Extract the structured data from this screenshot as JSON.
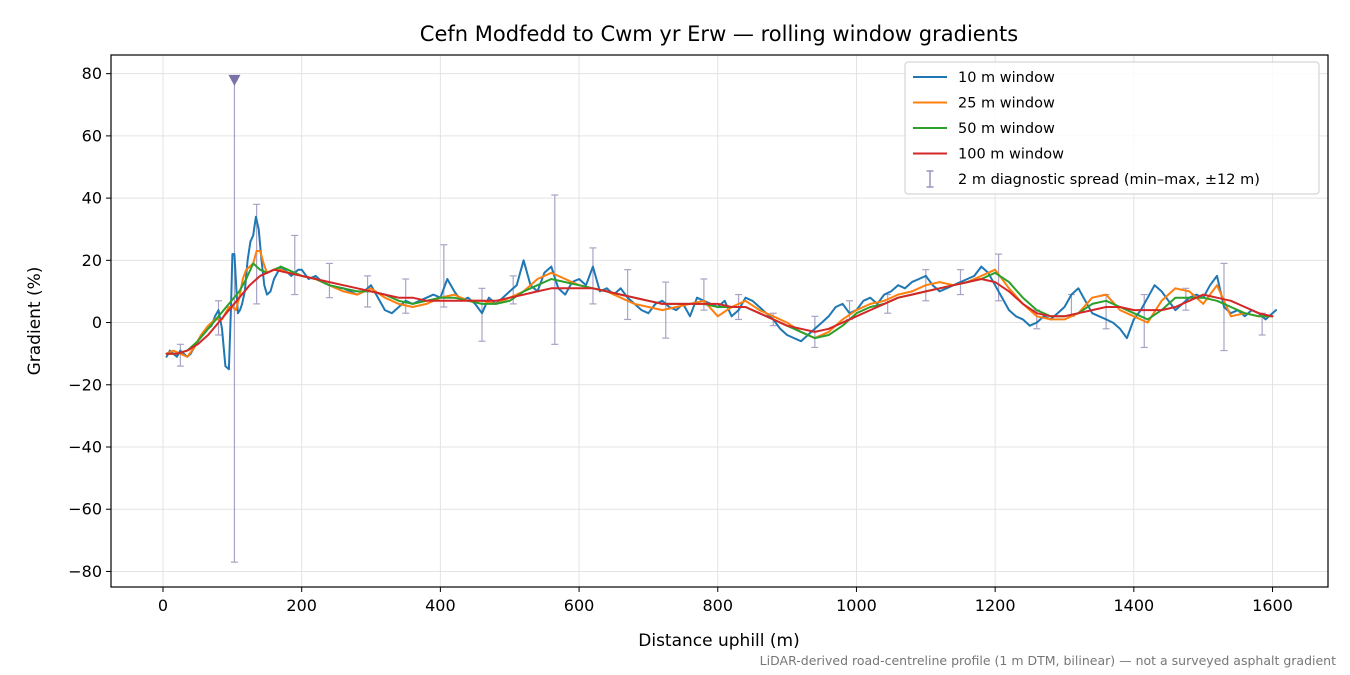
{
  "chart_data": {
    "type": "line",
    "title": "Cefn Modfedd to Cwm yr Erw — rolling window gradients",
    "xlabel": "Distance uphill (m)",
    "ylabel": "Gradient (%)",
    "xlim": [
      -75,
      1680
    ],
    "ylim": [
      -85,
      86
    ],
    "xticks": [
      0,
      200,
      400,
      600,
      800,
      1000,
      1200,
      1400,
      1600
    ],
    "yticks": [
      -80,
      -60,
      -40,
      -20,
      0,
      20,
      40,
      60,
      80
    ],
    "xtick_labels": [
      "0",
      "200",
      "400",
      "600",
      "800",
      "1000",
      "1200",
      "1400",
      "1600"
    ],
    "ytick_labels": [
      "−80",
      "−60",
      "−40",
      "−20",
      "0",
      "20",
      "40",
      "60",
      "80"
    ],
    "grid": true,
    "legend_position": "top-right",
    "footnote": "LiDAR-derived road-centreline profile (1 m DTM, bilinear) — not a surveyed asphalt gradient",
    "series": [
      {
        "name": "10 m window",
        "color": "#1f77b4",
        "x": [
          5,
          10,
          15,
          20,
          25,
          30,
          35,
          40,
          45,
          50,
          55,
          60,
          65,
          70,
          75,
          80,
          85,
          90,
          95,
          98,
          100,
          103,
          106,
          108,
          111,
          114,
          118,
          122,
          126,
          130,
          134,
          138,
          142,
          146,
          150,
          155,
          160,
          165,
          170,
          175,
          180,
          185,
          190,
          195,
          200,
          210,
          220,
          230,
          240,
          250,
          260,
          270,
          280,
          290,
          300,
          310,
          320,
          330,
          340,
          350,
          360,
          370,
          380,
          390,
          400,
          410,
          420,
          430,
          440,
          450,
          460,
          470,
          480,
          490,
          500,
          510,
          520,
          530,
          540,
          550,
          560,
          570,
          580,
          590,
          600,
          610,
          620,
          630,
          640,
          650,
          660,
          670,
          680,
          690,
          700,
          710,
          720,
          730,
          740,
          750,
          760,
          770,
          780,
          790,
          800,
          810,
          820,
          830,
          840,
          850,
          860,
          870,
          880,
          890,
          900,
          910,
          920,
          930,
          940,
          950,
          960,
          970,
          980,
          990,
          1000,
          1010,
          1020,
          1030,
          1040,
          1050,
          1060,
          1070,
          1080,
          1090,
          1100,
          1110,
          1120,
          1130,
          1140,
          1150,
          1160,
          1170,
          1180,
          1190,
          1200,
          1210,
          1220,
          1230,
          1240,
          1250,
          1260,
          1270,
          1280,
          1290,
          1300,
          1310,
          1320,
          1330,
          1340,
          1350,
          1360,
          1370,
          1380,
          1390,
          1400,
          1410,
          1420,
          1430,
          1440,
          1450,
          1460,
          1470,
          1480,
          1490,
          1500,
          1510,
          1520,
          1530,
          1540,
          1550,
          1560,
          1570,
          1580,
          1590,
          1600,
          1605
        ],
        "y": [
          -11,
          -9,
          -10,
          -11,
          -9,
          -10,
          -11,
          -10,
          -8,
          -6,
          -4,
          -3,
          -2,
          -1,
          2,
          4,
          -2,
          -14,
          -15,
          5,
          22,
          22,
          10,
          3,
          4,
          6,
          10,
          20,
          26,
          28,
          34,
          30,
          20,
          12,
          9,
          10,
          14,
          16,
          18,
          17,
          16,
          15,
          16,
          17,
          17,
          14,
          15,
          13,
          12,
          11,
          11,
          10,
          9,
          10,
          12,
          8,
          4,
          3,
          5,
          7,
          6,
          7,
          8,
          9,
          8,
          14,
          10,
          7,
          8,
          6,
          3,
          8,
          6,
          8,
          10,
          12,
          20,
          12,
          10,
          16,
          18,
          11,
          9,
          13,
          14,
          12,
          18,
          10,
          11,
          9,
          11,
          8,
          6,
          4,
          3,
          6,
          7,
          5,
          4,
          6,
          2,
          8,
          7,
          6,
          5,
          7,
          2,
          4,
          8,
          7,
          5,
          3,
          1,
          -2,
          -4,
          -5,
          -6,
          -4,
          -2,
          0,
          2,
          5,
          6,
          3,
          4,
          7,
          8,
          6,
          9,
          10,
          12,
          11,
          13,
          14,
          15,
          12,
          10,
          11,
          12,
          13,
          14,
          15,
          18,
          16,
          12,
          8,
          4,
          2,
          1,
          -1,
          0,
          2,
          1,
          3,
          5,
          9,
          11,
          7,
          3,
          2,
          1,
          0,
          -2,
          -5,
          1,
          4,
          8,
          12,
          10,
          7,
          4,
          6,
          8,
          9,
          8,
          12,
          15,
          5,
          3,
          4,
          2,
          4,
          3,
          1,
          3,
          4
        ]
      },
      {
        "name": "25 m window",
        "color": "#ff7f0e",
        "x": [
          5,
          15,
          25,
          35,
          45,
          55,
          65,
          75,
          85,
          95,
          100,
          105,
          110,
          115,
          120,
          125,
          130,
          135,
          140,
          145,
          150,
          160,
          170,
          180,
          190,
          200,
          220,
          240,
          260,
          280,
          300,
          320,
          340,
          360,
          380,
          400,
          420,
          440,
          460,
          480,
          500,
          520,
          540,
          560,
          580,
          600,
          620,
          640,
          660,
          680,
          700,
          720,
          740,
          760,
          780,
          800,
          820,
          840,
          860,
          880,
          900,
          920,
          940,
          960,
          980,
          1000,
          1020,
          1040,
          1060,
          1080,
          1100,
          1120,
          1140,
          1160,
          1180,
          1200,
          1220,
          1240,
          1260,
          1280,
          1300,
          1320,
          1340,
          1360,
          1380,
          1400,
          1420,
          1440,
          1460,
          1480,
          1500,
          1520,
          1540,
          1560,
          1580,
          1600
        ],
        "y": [
          -10,
          -9,
          -10,
          -11,
          -8,
          -4,
          -1,
          1,
          1,
          5,
          5,
          4,
          8,
          14,
          17,
          18,
          19,
          23,
          23,
          19,
          16,
          17,
          17,
          16,
          16,
          15,
          14,
          12,
          10,
          9,
          11,
          8,
          6,
          5,
          6,
          8,
          9,
          7,
          7,
          6,
          8,
          10,
          14,
          16,
          14,
          12,
          11,
          10,
          8,
          6,
          5,
          4,
          5,
          6,
          7,
          2,
          5,
          7,
          4,
          2,
          0,
          -3,
          -5,
          -3,
          1,
          4,
          6,
          7,
          9,
          10,
          12,
          13,
          12,
          13,
          15,
          17,
          11,
          6,
          2,
          1,
          1,
          3,
          8,
          9,
          4,
          2,
          0,
          7,
          11,
          10,
          6,
          12,
          2,
          3,
          2,
          2
        ]
      },
      {
        "name": "50 m window",
        "color": "#2ca02c",
        "x": [
          5,
          20,
          35,
          50,
          65,
          80,
          95,
          110,
          120,
          130,
          140,
          150,
          160,
          170,
          180,
          190,
          200,
          220,
          240,
          260,
          280,
          300,
          320,
          340,
          360,
          380,
          400,
          420,
          440,
          460,
          480,
          500,
          520,
          540,
          560,
          580,
          600,
          620,
          640,
          660,
          680,
          700,
          720,
          740,
          760,
          780,
          800,
          820,
          840,
          860,
          880,
          900,
          920,
          940,
          960,
          980,
          1000,
          1020,
          1040,
          1060,
          1080,
          1100,
          1120,
          1140,
          1160,
          1180,
          1200,
          1220,
          1240,
          1260,
          1280,
          1300,
          1320,
          1340,
          1360,
          1380,
          1400,
          1420,
          1440,
          1460,
          1480,
          1500,
          1520,
          1540,
          1560,
          1580,
          1600
        ],
        "y": [
          -10,
          -10,
          -9,
          -6,
          -2,
          2,
          6,
          10,
          14,
          19,
          17,
          16,
          17,
          18,
          17,
          16,
          15,
          14,
          12,
          11,
          10,
          10,
          9,
          7,
          6,
          7,
          8,
          8,
          7,
          6,
          6,
          7,
          10,
          12,
          14,
          13,
          12,
          11,
          10,
          9,
          8,
          7,
          6,
          6,
          6,
          6,
          5,
          5,
          5,
          3,
          1,
          -1,
          -3,
          -5,
          -4,
          -1,
          3,
          5,
          6,
          8,
          9,
          10,
          11,
          12,
          13,
          14,
          16,
          13,
          8,
          4,
          2,
          2,
          3,
          6,
          7,
          5,
          3,
          1,
          4,
          8,
          8,
          8,
          7,
          5,
          3,
          2,
          2
        ]
      },
      {
        "name": "100 m window",
        "color": "#d62728",
        "x": [
          5,
          20,
          35,
          50,
          65,
          80,
          95,
          110,
          125,
          140,
          160,
          180,
          200,
          220,
          240,
          260,
          280,
          300,
          320,
          340,
          360,
          380,
          400,
          420,
          440,
          460,
          480,
          500,
          520,
          540,
          560,
          580,
          600,
          620,
          640,
          660,
          680,
          700,
          720,
          740,
          760,
          780,
          800,
          820,
          840,
          860,
          880,
          900,
          920,
          940,
          960,
          980,
          1000,
          1020,
          1040,
          1060,
          1080,
          1100,
          1120,
          1140,
          1160,
          1180,
          1200,
          1220,
          1240,
          1260,
          1280,
          1300,
          1320,
          1340,
          1360,
          1380,
          1400,
          1420,
          1440,
          1460,
          1480,
          1500,
          1520,
          1540,
          1560,
          1580,
          1600
        ],
        "y": [
          -10,
          -10,
          -9,
          -7,
          -4,
          0,
          4,
          8,
          12,
          15,
          17,
          16,
          15,
          14,
          13,
          12,
          11,
          10,
          9,
          8,
          8,
          7,
          7,
          7,
          7,
          7,
          7,
          8,
          9,
          10,
          11,
          11,
          11,
          11,
          10,
          9,
          8,
          7,
          6,
          6,
          6,
          6,
          6,
          5,
          5,
          3,
          1,
          -1,
          -2,
          -3,
          -2,
          0,
          2,
          4,
          6,
          8,
          9,
          10,
          11,
          12,
          13,
          14,
          13,
          10,
          6,
          3,
          2,
          2,
          3,
          4,
          5,
          5,
          4,
          4,
          4,
          5,
          7,
          9,
          8,
          7,
          5,
          3,
          2
        ]
      }
    ],
    "errorbars": {
      "name": "2 m diagnostic spread (min–max, ±12 m)",
      "color": "#9a94bc",
      "x": [
        25,
        80,
        103,
        135,
        190,
        240,
        295,
        350,
        405,
        460,
        505,
        565,
        620,
        670,
        725,
        780,
        830,
        880,
        940,
        990,
        1045,
        1100,
        1150,
        1205,
        1260,
        1310,
        1360,
        1415,
        1475,
        1530,
        1585
      ],
      "ymin": [
        -14,
        -4,
        -77,
        6,
        9,
        8,
        5,
        3,
        5,
        -6,
        6,
        -7,
        6,
        1,
        -5,
        4,
        1,
        -1,
        -8,
        1,
        3,
        7,
        9,
        7,
        -2,
        2,
        -2,
        -8,
        4,
        -9,
        -4
      ],
      "ymax": [
        -7,
        7,
        78,
        38,
        28,
        19,
        15,
        14,
        25,
        11,
        15,
        41,
        24,
        17,
        13,
        14,
        9,
        3,
        2,
        7,
        9,
        17,
        17,
        22,
        4,
        9,
        9,
        9,
        11,
        19,
        3
      ]
    },
    "markers": [
      {
        "name": "off-scale-indicator",
        "x": 103,
        "y": 78,
        "shape": "triangle-down",
        "color": "#7b72a8"
      }
    ]
  }
}
